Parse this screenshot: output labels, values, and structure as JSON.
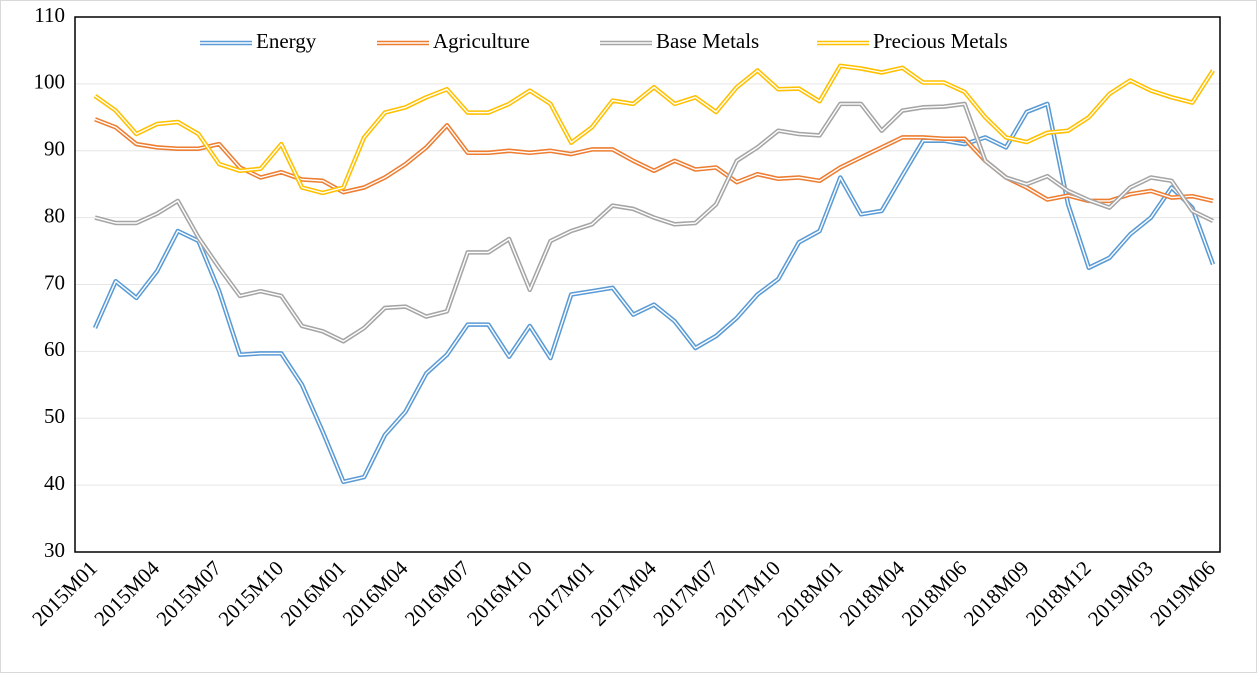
{
  "chart_data": {
    "type": "line",
    "categories": [
      "2015M01",
      null,
      null,
      "2015M04",
      null,
      null,
      "2015M07",
      null,
      null,
      "2015M10",
      null,
      null,
      "2016M01",
      null,
      null,
      "2016M04",
      null,
      null,
      "2016M07",
      null,
      null,
      "2016M10",
      null,
      null,
      "2017M01",
      null,
      null,
      "2017M04",
      null,
      null,
      "2017M07",
      null,
      null,
      "2017M10",
      null,
      null,
      "2018M01",
      null,
      null,
      "2018M04",
      null,
      null,
      "2018M06",
      null,
      null,
      "2018M09",
      null,
      null,
      "2018M12",
      null,
      null,
      "2019M03",
      null,
      null,
      "2019M06"
    ],
    "series": [
      {
        "name": "Energy",
        "color": "#5b9bd5",
        "values": [
          63.5,
          70.5,
          68,
          72,
          78,
          76.5,
          69,
          59.5,
          59.7,
          59.7,
          55,
          48,
          40.5,
          41.2,
          47.5,
          51,
          56.7,
          59.5,
          64,
          64,
          59.2,
          63.8,
          59,
          68.5,
          69,
          69.5,
          65.5,
          67,
          64.5,
          60.5,
          62.3,
          65,
          68.5,
          70.8,
          76.3,
          78,
          86,
          80.5,
          81,
          86.3,
          91.5,
          91.5,
          91,
          92,
          90.5,
          95.8,
          97,
          82,
          72.5,
          74,
          77.5,
          80,
          84.5,
          81.5,
          73
        ]
      },
      {
        "name": "Agriculture",
        "color": "#ed7d31",
        "values": [
          94.7,
          93.5,
          91,
          90.5,
          90.3,
          90.3,
          91,
          87.5,
          86,
          86.8,
          85.7,
          85.5,
          83.8,
          84.5,
          86,
          88,
          90.5,
          93.8,
          89.7,
          89.7,
          90,
          89.7,
          90,
          89.5,
          90.2,
          90.2,
          88.5,
          87,
          88.5,
          87.2,
          87.5,
          85.3,
          86.5,
          85.8,
          86,
          85.5,
          87.5,
          89,
          90.5,
          92,
          92,
          91.8,
          91.8,
          88.5,
          86,
          84.5,
          82.7,
          83.3,
          82.5,
          82.5,
          83.5,
          84,
          83,
          83.2,
          82.5
        ]
      },
      {
        "name": "Base Metals",
        "color": "#a5a5a5",
        "values": [
          80,
          79.2,
          79.2,
          80.6,
          82.5,
          77,
          72.5,
          68.3,
          69,
          68.3,
          63.8,
          63,
          61.5,
          63.5,
          66.5,
          66.7,
          65.2,
          66,
          74.8,
          74.8,
          76.8,
          69.2,
          76.5,
          78,
          79,
          81.8,
          81.3,
          80,
          79,
          79.2,
          82,
          88.5,
          90.5,
          93,
          92.5,
          92.3,
          97,
          97,
          93,
          96,
          96.5,
          96.6,
          97,
          88.5,
          86,
          85,
          86.2,
          84,
          82.6,
          81.5,
          84.5,
          86,
          85.5,
          81,
          79.5
        ]
      },
      {
        "name": "Precious Metals",
        "color": "#ffc000",
        "values": [
          98.2,
          96,
          92.5,
          94,
          94.3,
          92.5,
          88,
          87,
          87.3,
          91,
          84.5,
          83.7,
          84.5,
          92,
          95.7,
          96.5,
          98,
          99.2,
          95.7,
          95.7,
          97,
          99,
          97,
          91.2,
          93.5,
          97.5,
          97,
          99.5,
          97,
          98,
          95.8,
          99.5,
          102,
          99.2,
          99.3,
          97.4,
          102.7,
          102.3,
          101.7,
          102.4,
          100.2,
          100.2,
          98.8,
          95,
          92,
          91.3,
          92.7,
          93,
          95,
          98.5,
          100.5,
          99,
          98,
          97.2,
          102
        ]
      }
    ],
    "ylim": [
      30,
      110
    ],
    "yticks": [
      30,
      40,
      50,
      60,
      70,
      80,
      90,
      100,
      110
    ],
    "grid": true,
    "legend": "top"
  }
}
